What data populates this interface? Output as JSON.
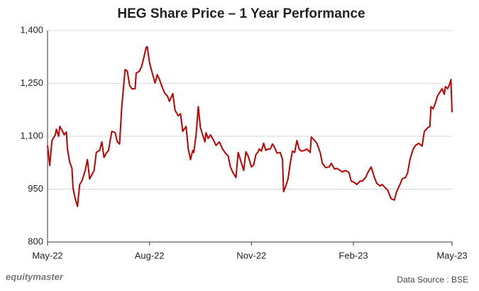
{
  "chart_data": {
    "type": "line",
    "title": "HEG Share Price – 1 Year Performance",
    "source": "Data Source : BSE",
    "logo": "equitymaster",
    "color": "#c00000",
    "grid": true,
    "xlim": [
      0,
      365
    ],
    "xticks": [
      {
        "value": 0,
        "label": "May-22"
      },
      {
        "value": 92,
        "label": "Aug-22"
      },
      {
        "value": 184,
        "label": "Nov-22"
      },
      {
        "value": 276,
        "label": "Feb-23"
      },
      {
        "value": 365,
        "label": "May-23"
      }
    ],
    "ylim": [
      800,
      1400
    ],
    "yticks": [
      {
        "value": 800,
        "label": "800"
      },
      {
        "value": 950,
        "label": "950"
      },
      {
        "value": 1100,
        "label": "1,100"
      },
      {
        "value": 1250,
        "label": "1,250"
      },
      {
        "value": 1400,
        "label": "1,400"
      }
    ],
    "x": [
      0,
      2,
      4,
      7,
      8,
      10,
      11,
      13,
      15,
      17,
      18,
      20,
      22,
      23,
      25,
      27,
      29,
      31,
      34,
      36,
      38,
      40,
      42,
      44,
      47,
      49,
      51,
      53,
      55,
      58,
      61,
      63,
      65,
      67,
      70,
      72,
      74,
      76,
      79,
      80,
      83,
      85,
      87,
      89,
      90,
      92,
      94,
      97,
      99,
      101,
      104,
      106,
      108,
      110,
      113,
      115,
      118,
      120,
      122,
      125,
      127,
      129,
      131,
      132,
      134,
      136,
      138,
      140,
      142,
      143,
      145,
      147,
      150,
      152,
      155,
      158,
      160,
      163,
      165,
      167,
      170,
      172,
      174,
      175,
      177,
      179,
      181,
      184,
      186,
      188,
      190,
      191,
      193,
      195,
      197,
      199,
      201,
      203,
      205,
      207,
      210,
      212,
      213,
      215,
      217,
      219,
      221,
      223,
      225,
      227,
      229,
      232,
      234,
      237,
      238,
      241,
      243,
      246,
      248,
      251,
      254,
      256,
      259,
      261,
      264,
      266,
      269,
      272,
      274,
      277,
      279,
      282,
      284,
      287,
      289,
      292,
      295,
      297,
      300,
      302,
      305,
      307,
      310,
      313,
      315,
      318,
      320,
      323,
      325,
      327,
      330,
      332,
      335,
      338,
      340,
      343,
      345,
      346,
      348,
      350,
      352,
      354,
      356,
      358,
      359,
      361,
      363,
      364,
      365
    ],
    "values": [
      1074,
      1017,
      1088,
      1104,
      1120,
      1100,
      1128,
      1118,
      1104,
      1112,
      1064,
      1027,
      1009,
      953,
      923,
      901,
      963,
      973,
      1003,
      1034,
      979,
      991,
      1003,
      1054,
      1060,
      1084,
      1040,
      1052,
      1060,
      1114,
      1110,
      1084,
      1078,
      1184,
      1289,
      1285,
      1245,
      1235,
      1235,
      1279,
      1285,
      1299,
      1325,
      1352,
      1354,
      1309,
      1285,
      1251,
      1275,
      1261,
      1235,
      1221,
      1215,
      1199,
      1221,
      1174,
      1158,
      1164,
      1114,
      1128,
      1064,
      1034,
      1060,
      1054,
      1104,
      1184,
      1124,
      1104,
      1084,
      1110,
      1094,
      1104,
      1088,
      1074,
      1084,
      1064,
      1054,
      1044,
      1013,
      999,
      983,
      1054,
      1034,
      1023,
      1003,
      1056,
      1044,
      1013,
      1019,
      1048,
      1056,
      1064,
      1058,
      1080,
      1060,
      1064,
      1064,
      1078,
      1068,
      1052,
      1054,
      1034,
      943,
      959,
      979,
      1023,
      1058,
      1054,
      1088,
      1064,
      1058,
      1060,
      1064,
      1054,
      1098,
      1088,
      1080,
      1054,
      1023,
      1011,
      1013,
      1023,
      1007,
      1009,
      1003,
      999,
      1003,
      997,
      973,
      969,
      963,
      973,
      973,
      983,
      997,
      1013,
      983,
      967,
      959,
      963,
      953,
      947,
      923,
      919,
      943,
      963,
      979,
      983,
      997,
      1034,
      1064,
      1074,
      1080,
      1072,
      1114,
      1124,
      1128,
      1184,
      1178,
      1195,
      1215,
      1225,
      1235,
      1219,
      1241,
      1235,
      1249,
      1261,
      1168
    ]
  }
}
